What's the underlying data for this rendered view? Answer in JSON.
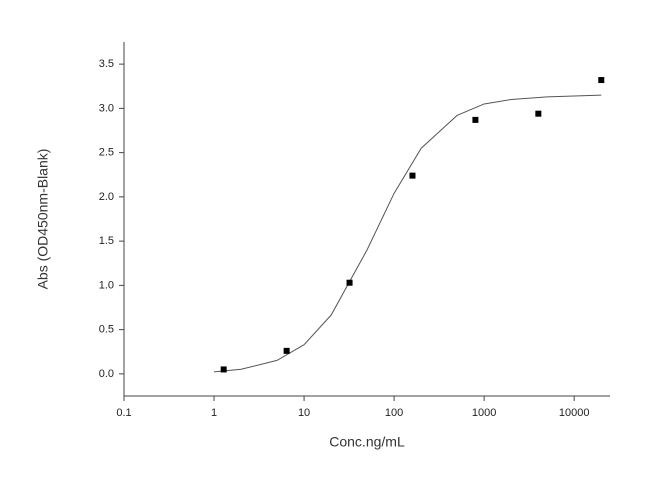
{
  "chart_data": {
    "type": "scatter",
    "x_label": "Conc.ng/mL",
    "y_label": "Abs (OD450nm-Blank)",
    "x": [
      1.28,
      6.4,
      32,
      160,
      800,
      4000,
      20000
    ],
    "values": [
      0.05,
      0.26,
      1.03,
      2.24,
      2.87,
      2.94,
      3.32
    ],
    "color": "#000000",
    "fit": {
      "x": [
        1,
        2,
        5,
        10,
        20,
        50,
        100,
        200,
        500,
        1000,
        2000,
        5000,
        10000,
        20000
      ],
      "values": [
        0.023,
        0.052,
        0.152,
        0.33,
        0.665,
        1.4,
        2.04,
        2.55,
        2.92,
        3.05,
        3.1,
        3.13,
        3.14,
        3.15
      ],
      "color": "#555555"
    },
    "xscale": "log",
    "xlim": [
      0.1,
      25000
    ],
    "xticks": [
      0.1,
      1,
      10,
      100,
      1000,
      10000
    ],
    "ylim": [
      -0.25,
      3.75
    ],
    "yticks": [
      {
        "value": 0,
        "label": "0.0"
      },
      0.5,
      {
        "value": 1,
        "label": "1.0"
      },
      1.5,
      {
        "value": 2,
        "label": "2.0"
      },
      2.5,
      {
        "value": 3,
        "label": "3.0"
      },
      3.5
    ],
    "grid": false
  }
}
